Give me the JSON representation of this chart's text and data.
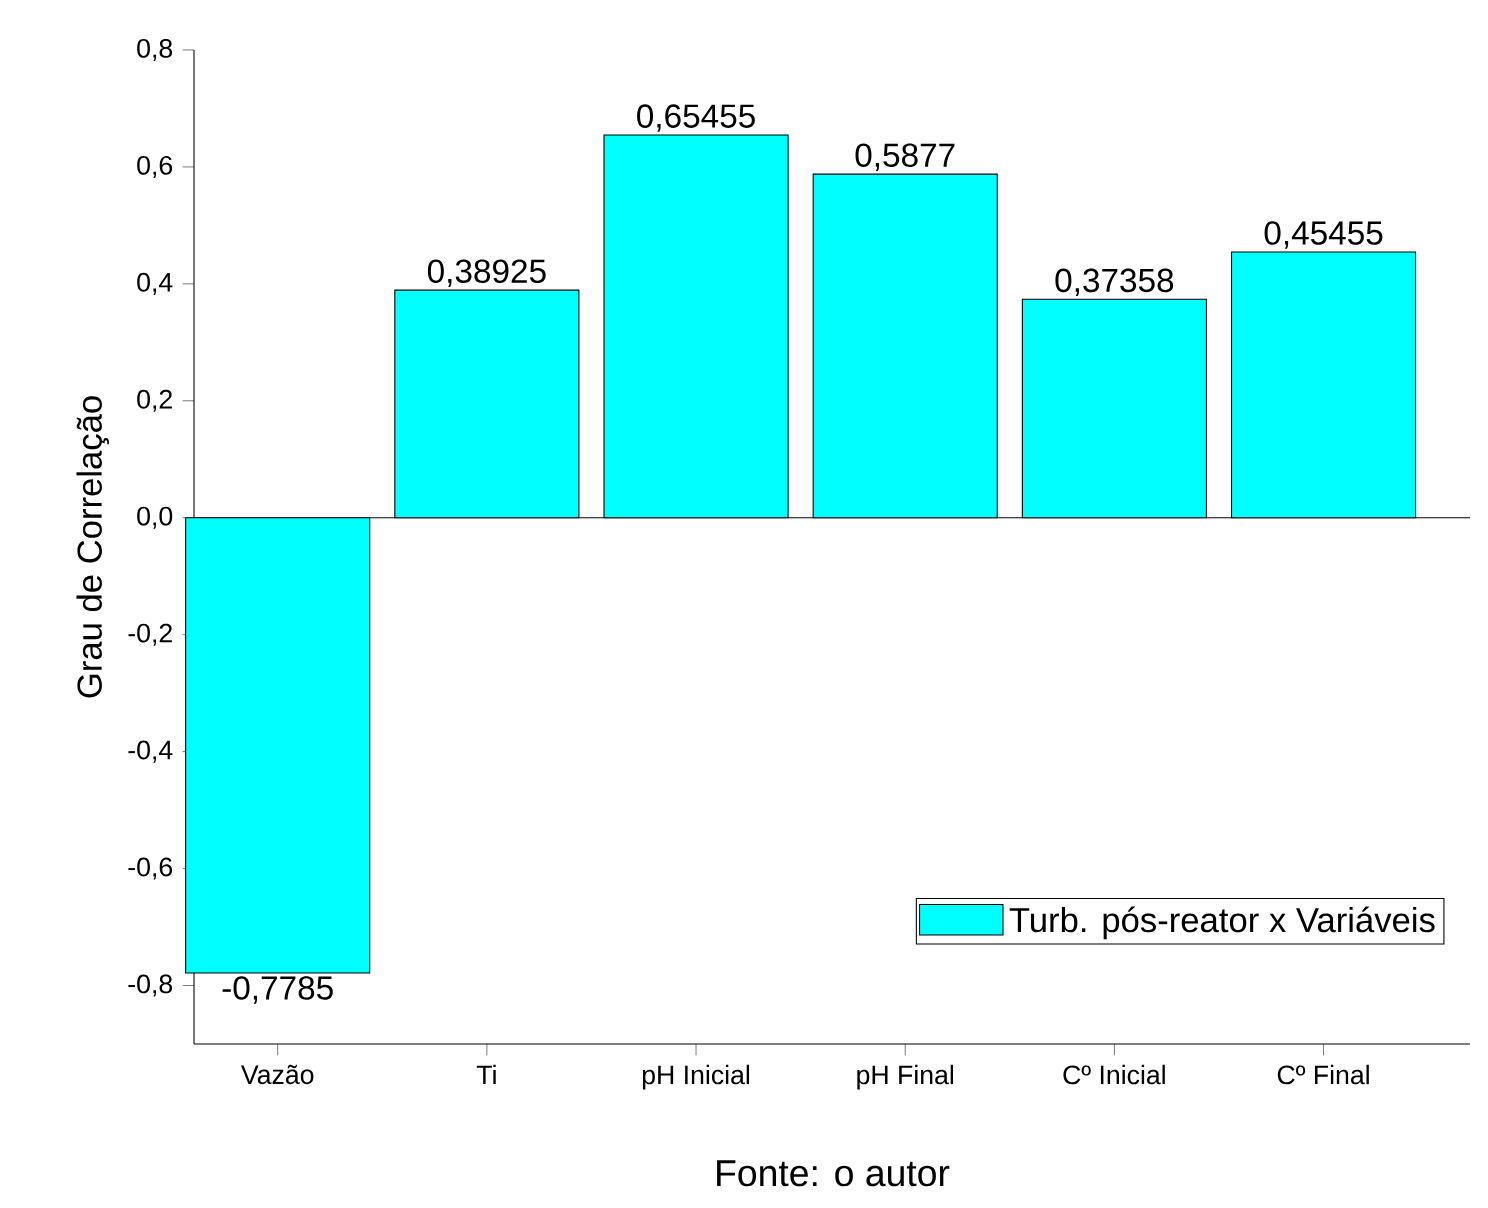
{
  "chart_data": {
    "type": "bar",
    "ylabel": "Grau de Correlação",
    "annotations": [
      "Fonte: o autor"
    ],
    "categories": [
      "Vazão",
      "Ti",
      "pH Inicial",
      "pH Final",
      "Cº Inicial",
      "Cº Final"
    ],
    "series": [
      {
        "name": "Turb. pós-reator x Variáveis",
        "color": "#00ffff",
        "values": [
          -0.7785,
          0.38925,
          0.65455,
          0.5877,
          0.37358,
          0.45455
        ],
        "value_labels": [
          "-0,7785",
          "0,38925",
          "0,65455",
          "0,5877",
          "0,37358",
          "0,45455"
        ]
      }
    ],
    "ylim": [
      -0.9,
      0.8
    ],
    "yticks": [
      {
        "value": -0.8,
        "label": "-0,8"
      },
      {
        "value": -0.6,
        "label": "-0,6"
      },
      {
        "value": -0.4,
        "label": "-0,4"
      },
      {
        "value": -0.2,
        "label": "-0,2"
      },
      {
        "value": 0.0,
        "label": "0,0"
      },
      {
        "value": 0.2,
        "label": "0,2"
      },
      {
        "value": 0.4,
        "label": "0,4"
      },
      {
        "value": 0.6,
        "label": "0,6"
      },
      {
        "value": 0.8,
        "label": "0,8"
      }
    ],
    "ref_lines": [
      {
        "axis": "y",
        "value": 0,
        "color": "#000000"
      }
    ],
    "legend": "bottom right",
    "grid": false
  }
}
